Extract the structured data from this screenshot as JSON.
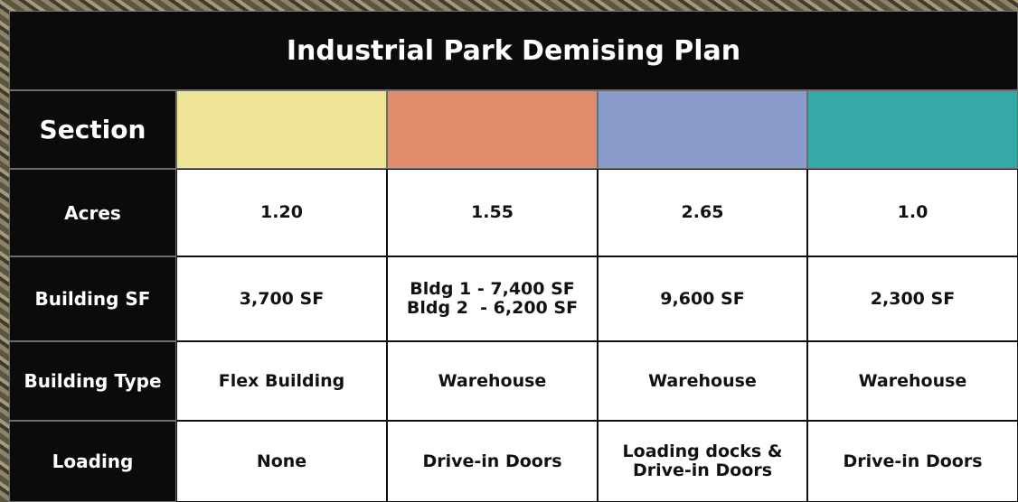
{
  "title": "Industrial Park Demising Plan",
  "table": {
    "header": "Section",
    "section_colors": [
      "#efe596",
      "#e08c6c",
      "#8a9ccc",
      "#35a9a8"
    ],
    "rows": [
      {
        "label": "Acres",
        "cells": [
          "1.20",
          "1.55",
          "2.65",
          "1.0"
        ]
      },
      {
        "label": "Building SF",
        "cells": [
          "3,700 SF",
          [
            "Bldg 1 - 7,400 SF",
            "Bldg 2  - 6,200 SF"
          ],
          "9,600 SF",
          "2,300 SF"
        ]
      },
      {
        "label": "Building Type",
        "cells": [
          "Flex Building",
          "Warehouse",
          "Warehouse",
          "Warehouse"
        ]
      },
      {
        "label": "Loading",
        "cells": [
          "None",
          "Drive-in Doors",
          [
            "Loading docks &",
            "Drive-in Doors"
          ],
          "Drive-in Doors"
        ]
      }
    ]
  }
}
